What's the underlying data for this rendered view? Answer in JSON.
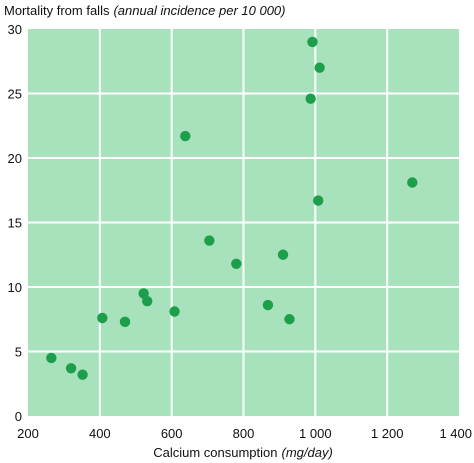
{
  "chart_data": {
    "type": "scatter",
    "title": "",
    "ylabel": "Mortality from falls",
    "ylabel_unit": "(annual incidence per 10 000)",
    "xlabel": "Calcium consumption",
    "xlabel_unit": "(mg/day)",
    "xlim": [
      200,
      1400
    ],
    "ylim": [
      0,
      30
    ],
    "xticks": [
      200,
      400,
      600,
      800,
      1000,
      1200,
      1400
    ],
    "xtick_labels": [
      "200",
      "400",
      "600",
      "800",
      "1 000",
      "1 200",
      "1 400"
    ],
    "yticks": [
      0,
      5,
      10,
      15,
      20,
      25,
      30
    ],
    "ytick_labels": [
      "0",
      "5",
      "10",
      "15",
      "20",
      "25",
      "30"
    ],
    "grid": true,
    "legend": "none",
    "colors": {
      "plot_background": "#a8e2bd",
      "grid": "#ffffff",
      "point": "#1c9e4a"
    },
    "points": [
      {
        "x": 265,
        "y": 4.5
      },
      {
        "x": 320,
        "y": 3.7
      },
      {
        "x": 352,
        "y": 3.2
      },
      {
        "x": 407,
        "y": 7.6
      },
      {
        "x": 470,
        "y": 7.3
      },
      {
        "x": 522,
        "y": 9.5
      },
      {
        "x": 532,
        "y": 8.9
      },
      {
        "x": 608,
        "y": 8.1
      },
      {
        "x": 638,
        "y": 21.7
      },
      {
        "x": 705,
        "y": 13.6
      },
      {
        "x": 780,
        "y": 11.8
      },
      {
        "x": 868,
        "y": 8.6
      },
      {
        "x": 910,
        "y": 12.5
      },
      {
        "x": 928,
        "y": 7.5
      },
      {
        "x": 987,
        "y": 24.6
      },
      {
        "x": 992,
        "y": 29.0
      },
      {
        "x": 1008,
        "y": 16.7
      },
      {
        "x": 1012,
        "y": 27.0
      },
      {
        "x": 1270,
        "y": 18.1
      }
    ]
  }
}
